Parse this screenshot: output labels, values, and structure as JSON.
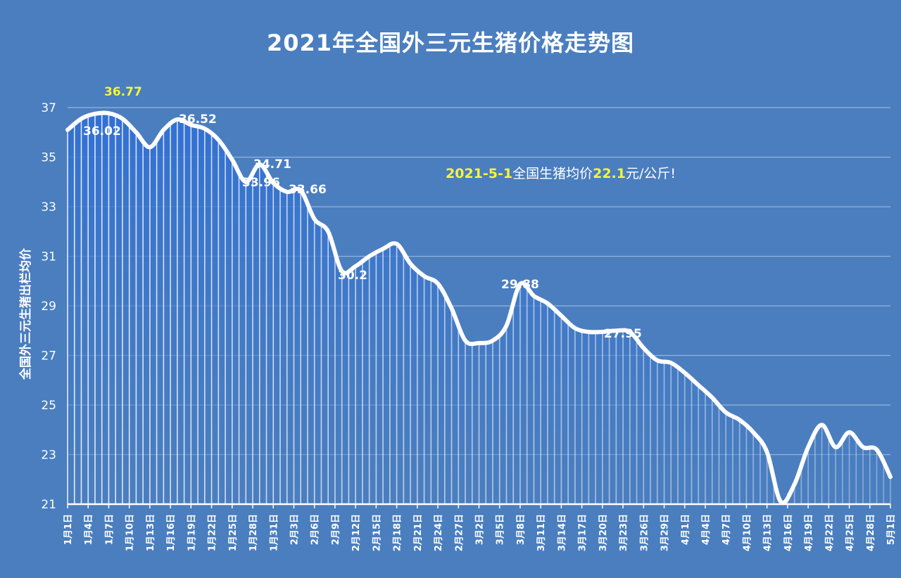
{
  "chart_data": {
    "type": "line",
    "title": "2021年全国外三元生猪价格走势图",
    "xlabel": "",
    "ylabel": "全国外三元生猪出栏均价",
    "ylim": [
      21,
      37
    ],
    "yticks": [
      21,
      23,
      25,
      27,
      29,
      31,
      33,
      35,
      37
    ],
    "grid": true,
    "legend": null,
    "x_tick_labels": [
      "1月1日",
      "1月4日",
      "1月7日",
      "1月10日",
      "1月13日",
      "1月16日",
      "1月19日",
      "1月22日",
      "1月25日",
      "1月28日",
      "1月31日",
      "2月3日",
      "2月6日",
      "2月9日",
      "2月12日",
      "2月15日",
      "2月18日",
      "2月21日",
      "2月24日",
      "2月27日",
      "3月2日",
      "3月5日",
      "3月8日",
      "3月11日",
      "3月14日",
      "3月17日",
      "3月20日",
      "3月23日",
      "3月26日",
      "3月29日",
      "4月1日",
      "4月4日",
      "4月7日",
      "4月10日",
      "4月13日",
      "4月16日",
      "4月19日",
      "4月22日",
      "4月25日",
      "4月28日",
      "5月1日"
    ],
    "series": [
      {
        "name": "全国外三元生猪出栏均价",
        "x_day_index": [
          0,
          2,
          4,
          6,
          8,
          10,
          12,
          14,
          16,
          18,
          20,
          22,
          24,
          26,
          28,
          30,
          32,
          34,
          36,
          38,
          40,
          42,
          44,
          46,
          48,
          50,
          52,
          54,
          56,
          58,
          60,
          62,
          64,
          66,
          68,
          70,
          72,
          74,
          76,
          78,
          80,
          82,
          84,
          86,
          88,
          90,
          92,
          94,
          96,
          98,
          100,
          102,
          104,
          106,
          108,
          110,
          112,
          114,
          116,
          118,
          120
        ],
        "values": [
          36.1,
          36.55,
          36.75,
          36.77,
          36.55,
          36.0,
          35.4,
          36.1,
          36.52,
          36.3,
          36.15,
          35.7,
          34.9,
          34.0,
          34.71,
          33.96,
          33.6,
          33.66,
          32.5,
          32.0,
          30.4,
          30.6,
          31.0,
          31.3,
          31.5,
          30.7,
          30.2,
          29.9,
          28.9,
          27.6,
          27.5,
          27.6,
          28.2,
          29.88,
          29.4,
          29.1,
          28.6,
          28.1,
          27.95,
          27.95,
          28.0,
          27.95,
          27.3,
          26.8,
          26.7,
          26.3,
          25.8,
          25.3,
          24.7,
          24.4,
          23.9,
          23.1,
          21.1,
          21.8,
          23.3,
          24.2,
          23.3,
          23.9,
          23.3,
          23.2,
          22.1
        ],
        "color": "#ffffff"
      }
    ],
    "data_labels": [
      {
        "text": "36.77",
        "x_day_index": 6,
        "highlight": true
      },
      {
        "text": "36.02",
        "x_day_index": 5,
        "highlight": false
      },
      {
        "text": "36.52",
        "x_day_index": 16,
        "highlight": false
      },
      {
        "text": "34.71",
        "x_day_index": 28,
        "highlight": false
      },
      {
        "text": "33.96",
        "x_day_index": 27,
        "highlight": false
      },
      {
        "text": "33.66",
        "x_day_index": 33,
        "highlight": false
      },
      {
        "text": "30.2",
        "x_day_index": 42,
        "highlight": false
      },
      {
        "text": "29.88",
        "x_day_index": 64,
        "highlight": false
      },
      {
        "text": "27.95",
        "x_day_index": 78,
        "highlight": false
      }
    ],
    "annotation": "2021-5-1全国生猪均价22.1元/公斤!"
  },
  "labels": {
    "title": "2021年全国外三元生猪价格走势图",
    "y_axis_title": "全国外三元生猪出栏均价",
    "annotation_date": "2021-5-1",
    "annotation_mid": "全国生猪均价",
    "annotation_price": "22.1",
    "annotation_unit": "元/公斤!"
  },
  "colors": {
    "background": "#4a7ebf",
    "line": "#ffffff",
    "highlight": "#f5f53a",
    "gridline": "#a9c3e6"
  }
}
